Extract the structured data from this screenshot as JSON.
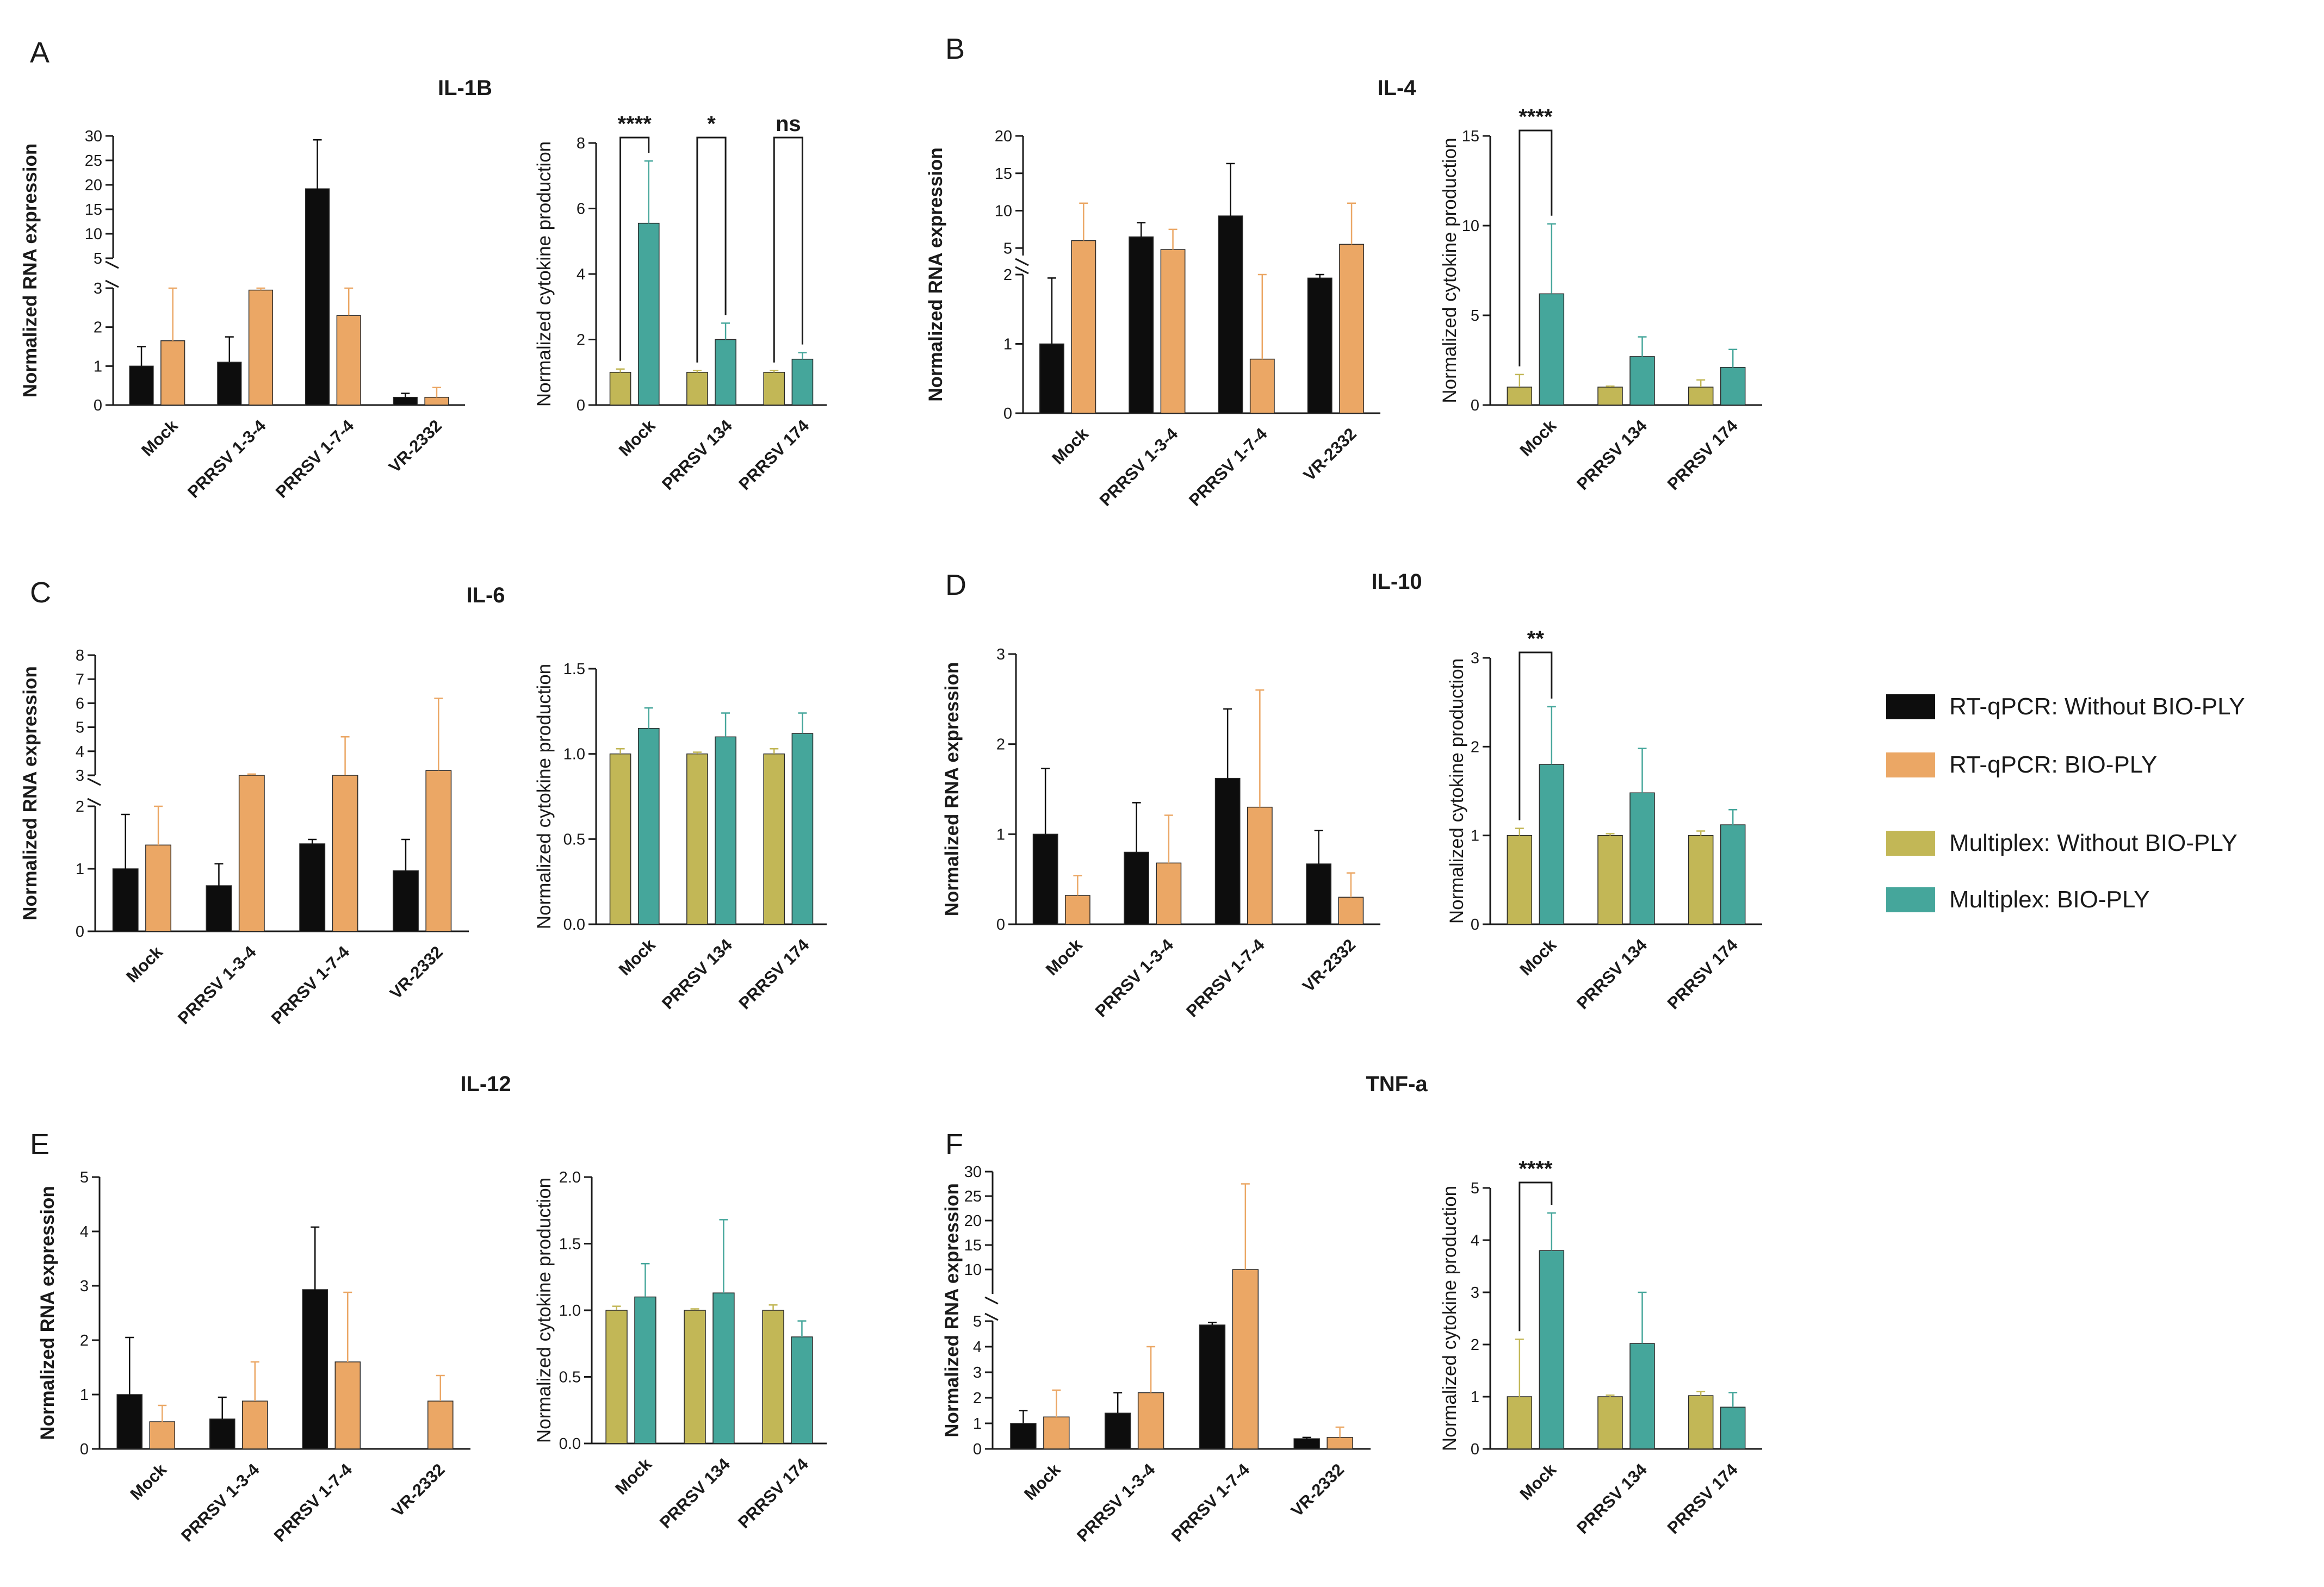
{
  "colors": {
    "rt_without": "#0d0d0d",
    "rt_with": "#eba765",
    "mp_without": "#c2b756",
    "mp_with": "#45a69b",
    "axis": "#1a1a1a"
  },
  "legend": [
    {
      "label": "RT-qPCR: Without BIO-PLY",
      "color": "#0d0d0d"
    },
    {
      "label": "RT-qPCR: BIO-PLY",
      "color": "#eba765"
    },
    {
      "label": "Multiplex: Without BIO-PLY",
      "color": "#c2b756"
    },
    {
      "label": "Multiplex: BIO-PLY",
      "color": "#45a69b"
    }
  ],
  "chart_data": [
    {
      "panel": "A",
      "title": "IL-1B",
      "type": "bar",
      "method": "RT-qPCR",
      "ylabel": "Normalized RNA expression",
      "categories": [
        "Mock",
        "PRRSV 1-3-4",
        "PRRSV 1-7-4",
        "VR-2332"
      ],
      "y_break": {
        "lower": [
          0,
          3
        ],
        "upper": [
          5,
          30
        ],
        "lower_ticks": [
          0,
          1,
          2,
          3
        ],
        "upper_ticks": [
          5,
          10,
          15,
          20,
          25,
          30
        ]
      },
      "series": [
        {
          "name": "RT-qPCR: Without BIO-PLY",
          "values": [
            1.0,
            1.1,
            19.2,
            0.2
          ],
          "errors": [
            0.5,
            0.65,
            10.0,
            0.1
          ]
        },
        {
          "name": "RT-qPCR: BIO-PLY",
          "values": [
            1.65,
            2.95,
            2.3,
            0.2
          ],
          "errors": [
            1.35,
            0.15,
            0.7,
            0.25
          ]
        }
      ]
    },
    {
      "panel": "A",
      "title": "IL-1B",
      "type": "bar",
      "method": "Multiplex",
      "ylabel": "Normalized cytokine production",
      "categories": [
        "Mock",
        "PRRSV 134",
        "PRRSV 174"
      ],
      "ylim": [
        0,
        8
      ],
      "ticks": [
        0,
        2,
        4,
        6,
        8
      ],
      "series": [
        {
          "name": "Multiplex: Without BIO-PLY",
          "values": [
            1.0,
            1.0,
            1.0
          ],
          "errors": [
            0.1,
            0.05,
            0.05
          ]
        },
        {
          "name": "Multiplex: BIO-PLY",
          "values": [
            5.55,
            2.0,
            1.4
          ],
          "errors": [
            1.9,
            0.5,
            0.2
          ]
        }
      ],
      "significance": [
        {
          "group": 0,
          "label": "****"
        },
        {
          "group": 1,
          "label": "*"
        },
        {
          "group": 2,
          "label": "ns"
        }
      ]
    },
    {
      "panel": "B",
      "title": "IL-4",
      "type": "bar",
      "method": "RT-qPCR",
      "ylabel": "Normalized RNA expression",
      "categories": [
        "Mock",
        "PRRSV 1-3-4",
        "PRRSV 1-7-4",
        "VR-2332"
      ],
      "y_break": {
        "lower": [
          0,
          2
        ],
        "upper": [
          4,
          20
        ],
        "lower_ticks": [
          0,
          1,
          2
        ],
        "upper_ticks": [
          5,
          10,
          15,
          20
        ]
      },
      "series": [
        {
          "name": "RT-qPCR: Without BIO-PLY",
          "values": [
            1.0,
            6.5,
            9.3,
            1.95
          ],
          "errors": [
            0.95,
            1.9,
            7.0,
            0.05
          ]
        },
        {
          "name": "RT-qPCR: BIO-PLY",
          "values": [
            6.0,
            4.8,
            0.78,
            5.5
          ],
          "errors": [
            5.0,
            2.7,
            1.25,
            5.5
          ]
        }
      ]
    },
    {
      "panel": "B",
      "title": "IL-4",
      "type": "bar",
      "method": "Multiplex",
      "ylabel": "Normalized cytokine production",
      "categories": [
        "Mock",
        "PRRSV 134",
        "PRRSV 174"
      ],
      "ylim": [
        0,
        15
      ],
      "ticks": [
        0,
        5,
        10,
        15
      ],
      "series": [
        {
          "name": "Multiplex: Without BIO-PLY",
          "values": [
            1.0,
            1.0,
            1.0
          ],
          "errors": [
            0.7,
            0.05,
            0.4
          ]
        },
        {
          "name": "Multiplex: BIO-PLY",
          "values": [
            6.2,
            2.7,
            2.1
          ],
          "errors": [
            3.9,
            1.1,
            1.0
          ]
        }
      ],
      "significance": [
        {
          "group": 0,
          "label": "****"
        }
      ]
    },
    {
      "panel": "C",
      "title": "IL-6",
      "type": "bar",
      "method": "RT-qPCR",
      "ylabel": "Normalized RNA expression",
      "categories": [
        "Mock",
        "PRRSV 1-3-4",
        "PRRSV 1-7-4",
        "VR-2332"
      ],
      "y_break": {
        "lower": [
          0,
          2
        ],
        "upper": [
          3,
          8
        ],
        "lower_ticks": [
          0,
          1,
          2
        ],
        "upper_ticks": [
          3,
          4,
          5,
          6,
          7,
          8
        ]
      },
      "series": [
        {
          "name": "RT-qPCR: Without BIO-PLY",
          "values": [
            1.0,
            0.73,
            1.4,
            0.97
          ],
          "errors": [
            0.87,
            0.35,
            0.07,
            0.5
          ]
        },
        {
          "name": "RT-qPCR: BIO-PLY",
          "values": [
            1.38,
            3.0,
            3.0,
            3.2
          ],
          "errors": [
            0.62,
            0.05,
            1.6,
            3.0
          ]
        }
      ]
    },
    {
      "panel": "C",
      "title": "IL-6",
      "type": "bar",
      "method": "Multiplex",
      "ylabel": "Normalized cytokine production",
      "categories": [
        "Mock",
        "PRRSV 134",
        "PRRSV 174"
      ],
      "ylim": [
        0,
        1.5
      ],
      "ticks": [
        "0.0",
        "0.5",
        "1.0",
        "1.5"
      ],
      "series": [
        {
          "name": "Multiplex: Without BIO-PLY",
          "values": [
            1.0,
            1.0,
            1.0
          ],
          "errors": [
            0.03,
            0.01,
            0.03
          ]
        },
        {
          "name": "Multiplex: BIO-PLY",
          "values": [
            1.15,
            1.1,
            1.12
          ],
          "errors": [
            0.12,
            0.14,
            0.12
          ]
        }
      ]
    },
    {
      "panel": "D",
      "title": "IL-10",
      "type": "bar",
      "method": "RT-qPCR",
      "ylabel": "Normalized RNA expression",
      "categories": [
        "Mock",
        "PRRSV 1-3-4",
        "PRRSV 1-7-4",
        "VR-2332"
      ],
      "ylim": [
        0,
        3
      ],
      "ticks": [
        0,
        1,
        2,
        3
      ],
      "series": [
        {
          "name": "RT-qPCR: Without BIO-PLY",
          "values": [
            1.0,
            0.8,
            1.62,
            0.67
          ],
          "errors": [
            0.73,
            0.55,
            0.77,
            0.37
          ]
        },
        {
          "name": "RT-qPCR: BIO-PLY",
          "values": [
            0.32,
            0.68,
            1.3,
            0.3
          ],
          "errors": [
            0.22,
            0.53,
            1.3,
            0.27
          ]
        }
      ]
    },
    {
      "panel": "D",
      "title": "IL-10",
      "type": "bar",
      "method": "Multiplex",
      "ylabel": "Normalized cytokine production",
      "categories": [
        "Mock",
        "PRRSV 134",
        "PRRSV 174"
      ],
      "ylim": [
        0,
        3
      ],
      "ticks": [
        0,
        1,
        2,
        3
      ],
      "series": [
        {
          "name": "Multiplex: Without BIO-PLY",
          "values": [
            1.0,
            1.0,
            1.0
          ],
          "errors": [
            0.08,
            0.02,
            0.05
          ]
        },
        {
          "name": "Multiplex: BIO-PLY",
          "values": [
            1.8,
            1.48,
            1.12
          ],
          "errors": [
            0.65,
            0.5,
            0.17
          ]
        }
      ],
      "significance": [
        {
          "group": 0,
          "label": "**"
        }
      ]
    },
    {
      "panel": "E",
      "title": "IL-12",
      "type": "bar",
      "method": "RT-qPCR",
      "ylabel": "Normalized RNA expression",
      "categories": [
        "Mock",
        "PRRSV 1-3-4",
        "PRRSV 1-7-4",
        "VR-2332"
      ],
      "ylim": [
        0,
        5
      ],
      "ticks": [
        0,
        1,
        2,
        3,
        4,
        5
      ],
      "series": [
        {
          "name": "RT-qPCR: Without BIO-PLY",
          "values": [
            1.0,
            0.55,
            2.93,
            0
          ],
          "errors": [
            1.05,
            0.4,
            1.15,
            0
          ]
        },
        {
          "name": "RT-qPCR: BIO-PLY",
          "values": [
            0.5,
            0.88,
            1.6,
            0.88
          ],
          "errors": [
            0.3,
            0.72,
            1.28,
            0.47
          ]
        }
      ]
    },
    {
      "panel": "E",
      "title": "IL-12",
      "type": "bar",
      "method": "Multiplex",
      "ylabel": "Normalized cytokine production",
      "categories": [
        "Mock",
        "PRRSV 134",
        "PRRSV 174"
      ],
      "ylim": [
        0,
        2
      ],
      "ticks": [
        "0.0",
        "0.5",
        "1.0",
        "1.5",
        "2.0"
      ],
      "series": [
        {
          "name": "Multiplex: Without BIO-PLY",
          "values": [
            1.0,
            1.0,
            1.0
          ],
          "errors": [
            0.03,
            0.01,
            0.04
          ]
        },
        {
          "name": "Multiplex: BIO-PLY",
          "values": [
            1.1,
            1.13,
            0.8
          ],
          "errors": [
            0.25,
            0.55,
            0.12
          ]
        }
      ]
    },
    {
      "panel": "F",
      "title": "TNF-a",
      "type": "bar",
      "method": "RT-qPCR",
      "ylabel": "Normalized RNA expression",
      "categories": [
        "Mock",
        "PRRSV 1-3-4",
        "PRRSV 1-7-4",
        "VR-2332"
      ],
      "y_break": {
        "lower": [
          0,
          5
        ],
        "upper": [
          5,
          30
        ],
        "lower_ticks": [
          0,
          1,
          2,
          3,
          4,
          5
        ],
        "upper_ticks": [
          10,
          15,
          20,
          25,
          30
        ]
      },
      "series": [
        {
          "name": "RT-qPCR: Without BIO-PLY",
          "values": [
            1.0,
            1.4,
            4.85,
            0.4
          ],
          "errors": [
            0.5,
            0.8,
            0.1,
            0.05
          ]
        },
        {
          "name": "RT-qPCR: BIO-PLY",
          "values": [
            1.25,
            2.2,
            10.0,
            0.45
          ],
          "errors": [
            1.05,
            1.8,
            17.5,
            0.4
          ]
        }
      ]
    },
    {
      "panel": "F",
      "title": "TNF-a",
      "type": "bar",
      "method": "Multiplex",
      "ylabel": "Normalized cytokine production",
      "categories": [
        "Mock",
        "PRRSV 134",
        "PRRSV 174"
      ],
      "ylim": [
        0,
        5
      ],
      "ticks": [
        0,
        1,
        2,
        3,
        4,
        5
      ],
      "series": [
        {
          "name": "Multiplex: Without BIO-PLY",
          "values": [
            1.0,
            1.0,
            1.02
          ],
          "errors": [
            1.1,
            0.03,
            0.08
          ]
        },
        {
          "name": "Multiplex: BIO-PLY",
          "values": [
            3.8,
            2.02,
            0.8
          ],
          "errors": [
            0.72,
            0.98,
            0.28
          ]
        }
      ],
      "significance": [
        {
          "group": 0,
          "label": "****"
        }
      ]
    }
  ]
}
